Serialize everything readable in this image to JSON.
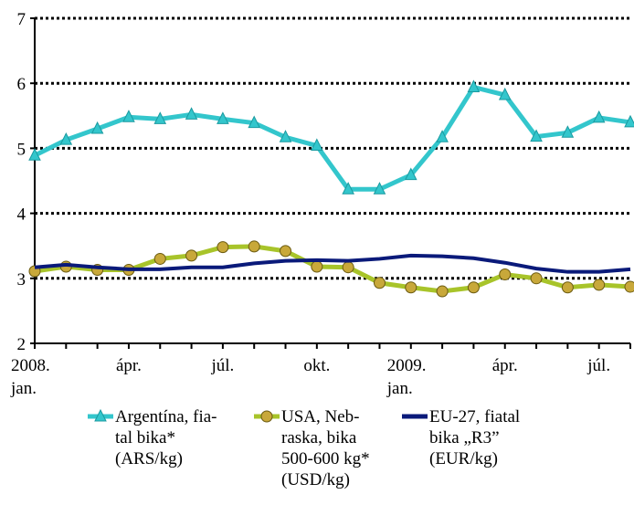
{
  "chart_data": {
    "type": "line",
    "categories": [
      "2008.\njan.",
      null,
      null,
      "ápr.",
      null,
      null,
      "júl.",
      null,
      null,
      "okt.",
      null,
      null,
      "2009.\njan.",
      null,
      null,
      "ápr.",
      null,
      null,
      "júl.",
      null
    ],
    "series": [
      {
        "name": "Argentína, fia-\ntal bika*\n(ARS/kg)",
        "color": "#33c6cc",
        "marker": "triangle",
        "values": [
          4.89,
          5.13,
          5.3,
          5.48,
          5.45,
          5.52,
          5.45,
          5.39,
          5.17,
          5.04,
          4.37,
          4.37,
          4.59,
          5.17,
          5.94,
          5.82,
          5.18,
          5.24,
          5.47,
          5.4
        ]
      },
      {
        "name": "USA, Neb-\nraska, bika\n500-600 kg*\n(USD/kg)",
        "color": "#a8c42a",
        "marker": "circle",
        "values": [
          3.11,
          3.18,
          3.13,
          3.13,
          3.3,
          3.35,
          3.48,
          3.49,
          3.42,
          3.18,
          3.17,
          2.93,
          2.86,
          2.8,
          2.86,
          3.06,
          3.0,
          2.86,
          2.9,
          2.87
        ]
      },
      {
        "name": "EU-27, fiatal\nbika „R3”\n(EUR/kg)",
        "color": "#0a1a7a",
        "marker": "none",
        "values": [
          3.17,
          3.21,
          3.17,
          3.14,
          3.14,
          3.17,
          3.17,
          3.23,
          3.27,
          3.28,
          3.27,
          3.3,
          3.35,
          3.34,
          3.31,
          3.24,
          3.15,
          3.1,
          3.1,
          3.14
        ]
      }
    ],
    "ylim": [
      2,
      7
    ],
    "yticks": [
      2,
      3,
      4,
      5,
      6,
      7
    ],
    "grid": true
  }
}
